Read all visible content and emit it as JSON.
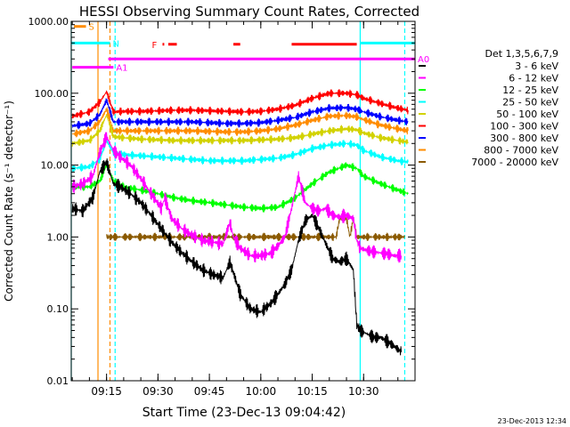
{
  "footer_timestamp": "23-Dec-2013 12:34",
  "chart_data": {
    "type": "line",
    "title": "HESSI Observing Summary Count Rates, Corrected",
    "xlabel": "Start Time (23-Dec-13 09:04:42)",
    "ylabel": "Corrected Count Rate (s⁻¹ detector⁻¹)",
    "y_scale": "log",
    "ylim": [
      0.01,
      1000
    ],
    "xlim": [
      "09:04:42",
      "10:45:00"
    ],
    "x_ticks": [
      "09:15",
      "09:30",
      "09:45",
      "10:00",
      "10:15",
      "10:30"
    ],
    "y_ticks": [
      "0.01",
      "0.10",
      "1.00",
      "10.00",
      "100.00",
      "1000.00"
    ],
    "legend_title": "Det 1,3,5,6,7,9",
    "legend_position": "right",
    "series": [
      {
        "name": "3 - 6 keV",
        "color": "#000000",
        "x": [
          "09:05",
          "09:08",
          "09:11",
          "09:13",
          "09:15",
          "09:17",
          "09:19",
          "09:22",
          "09:25",
          "09:28",
          "09:31",
          "09:34",
          "09:37",
          "09:40",
          "09:43",
          "09:46",
          "09:49",
          "09:51",
          "09:52",
          "09:54",
          "09:57",
          "10:00",
          "10:03",
          "10:05",
          "10:07",
          "10:09",
          "10:11",
          "10:13",
          "10:15",
          "10:17",
          "10:19",
          "10:21",
          "10:23",
          "10:25",
          "10:27",
          "10:28",
          "10:29",
          "10:31",
          "10:33",
          "10:35",
          "10:37",
          "10:39",
          "10:41"
        ],
        "values": [
          2.5,
          2.3,
          3.5,
          8,
          11,
          5.5,
          5,
          4,
          3,
          2,
          1.3,
          0.85,
          0.6,
          0.45,
          0.35,
          0.3,
          0.27,
          0.45,
          0.32,
          0.16,
          0.1,
          0.09,
          0.12,
          0.16,
          0.22,
          0.35,
          0.9,
          1.7,
          2,
          1.3,
          0.8,
          0.5,
          0.45,
          0.5,
          0.35,
          0.06,
          0.05,
          0.045,
          0.04,
          0.04,
          0.035,
          0.03,
          0.025
        ]
      },
      {
        "name": "6 - 12 keV",
        "color": "#ff00ff",
        "x": [
          "09:05",
          "09:08",
          "09:11",
          "09:13",
          "09:15",
          "09:17",
          "09:19",
          "09:22",
          "09:25",
          "09:28",
          "09:31",
          "09:32",
          "09:34",
          "09:37",
          "09:40",
          "09:43",
          "09:46",
          "09:49",
          "09:51",
          "09:52",
          "09:54",
          "09:57",
          "10:00",
          "10:03",
          "10:05",
          "10:07",
          "10:09",
          "10:11",
          "10:13",
          "10:15",
          "10:17",
          "10:19",
          "10:21",
          "10:23",
          "10:25",
          "10:27",
          "10:28",
          "10:29",
          "10:31",
          "10:33",
          "10:35",
          "10:37",
          "10:39",
          "10:41"
        ],
        "values": [
          5,
          5.5,
          7,
          15,
          25,
          16,
          13,
          10,
          6.5,
          4,
          2.5,
          3.5,
          1.8,
          1.3,
          1.05,
          0.9,
          0.85,
          0.8,
          1.6,
          1,
          0.7,
          0.55,
          0.55,
          0.6,
          0.75,
          1,
          2.5,
          7,
          3,
          2.5,
          2.3,
          2.5,
          2,
          1.9,
          2,
          1.8,
          0.9,
          0.7,
          0.65,
          0.62,
          0.6,
          0.58,
          0.55,
          0.55
        ]
      },
      {
        "name": "12 - 25 keV",
        "color": "#00ff00",
        "x": [
          "09:05",
          "09:10",
          "09:13",
          "09:15",
          "09:17",
          "09:20",
          "09:25",
          "09:30",
          "09:35",
          "09:40",
          "09:45",
          "09:50",
          "09:55",
          "10:00",
          "10:05",
          "10:10",
          "10:15",
          "10:20",
          "10:25",
          "10:28",
          "10:30",
          "10:35",
          "10:40",
          "10:43"
        ],
        "values": [
          5,
          5,
          6,
          10,
          6,
          5,
          4.5,
          4,
          3.5,
          3.2,
          3,
          2.8,
          2.6,
          2.5,
          2.6,
          3.5,
          5.5,
          8,
          10,
          9,
          7,
          5.5,
          4.5,
          4
        ]
      },
      {
        "name": "25 - 50 keV",
        "color": "#00ffff",
        "x": [
          "09:05",
          "09:10",
          "09:13",
          "09:15",
          "09:17",
          "09:20",
          "09:25",
          "09:30",
          "09:35",
          "09:40",
          "09:45",
          "09:50",
          "09:55",
          "10:00",
          "10:05",
          "10:10",
          "10:15",
          "10:20",
          "10:25",
          "10:28",
          "10:30",
          "10:35",
          "10:40",
          "10:43"
        ],
        "values": [
          9,
          9.5,
          12,
          22,
          15,
          14,
          13.5,
          13,
          12.5,
          12,
          11.5,
          11.5,
          11.5,
          12,
          12.5,
          14,
          17,
          19,
          20,
          19,
          16,
          13,
          11.5,
          11
        ]
      },
      {
        "name": "50 - 100 keV",
        "color": "#d2d200",
        "x": [
          "09:05",
          "09:10",
          "09:13",
          "09:15",
          "09:17",
          "09:20",
          "09:25",
          "09:30",
          "09:35",
          "09:40",
          "09:45",
          "09:50",
          "09:55",
          "10:00",
          "10:05",
          "10:10",
          "10:15",
          "10:20",
          "10:25",
          "10:28",
          "10:30",
          "10:35",
          "10:40",
          "10:43"
        ],
        "values": [
          20,
          22,
          30,
          50,
          25,
          24,
          23,
          22.5,
          22,
          22,
          22,
          22,
          22,
          22.5,
          23,
          24,
          27,
          30,
          32,
          31,
          28,
          24,
          22,
          21
        ]
      },
      {
        "name": "100 - 300 keV",
        "color": "#ff0000",
        "x": [
          "09:05",
          "09:10",
          "09:13",
          "09:15",
          "09:17",
          "09:20",
          "09:25",
          "09:30",
          "09:35",
          "09:40",
          "09:45",
          "09:50",
          "09:55",
          "10:00",
          "10:05",
          "10:10",
          "10:15",
          "10:20",
          "10:25",
          "10:28",
          "10:30",
          "10:35",
          "10:40",
          "10:43"
        ],
        "values": [
          48,
          55,
          75,
          105,
          55,
          56,
          56,
          57,
          58,
          58,
          57,
          56,
          55,
          56,
          60,
          68,
          85,
          100,
          100,
          95,
          85,
          72,
          62,
          58
        ]
      },
      {
        "name": "300 - 800 keV",
        "color": "#0000ff",
        "x": [
          "09:05",
          "09:10",
          "09:13",
          "09:15",
          "09:17",
          "09:20",
          "09:25",
          "09:30",
          "09:35",
          "09:40",
          "09:45",
          "09:50",
          "09:55",
          "10:00",
          "10:05",
          "10:10",
          "10:15",
          "10:20",
          "10:25",
          "10:28",
          "10:30",
          "10:35",
          "10:40",
          "10:43"
        ],
        "values": [
          35,
          38,
          50,
          80,
          40,
          40,
          40,
          40,
          40,
          40,
          39,
          38,
          38,
          39,
          42,
          46,
          55,
          62,
          63,
          60,
          55,
          47,
          42,
          40
        ]
      },
      {
        "name": "800 - 7000 keV",
        "color": "#ff8c00",
        "x": [
          "09:05",
          "09:10",
          "09:13",
          "09:15",
          "09:17",
          "09:20",
          "09:25",
          "09:30",
          "09:35",
          "09:40",
          "09:45",
          "09:50",
          "09:55",
          "10:00",
          "10:05",
          "10:10",
          "10:15",
          "10:20",
          "10:25",
          "10:28",
          "10:30",
          "10:35",
          "10:40",
          "10:43"
        ],
        "values": [
          27,
          30,
          40,
          60,
          30,
          30,
          30,
          30,
          30,
          30,
          29.5,
          29,
          29,
          30,
          32,
          36,
          42,
          48,
          49,
          47,
          43,
          36,
          32,
          30
        ]
      },
      {
        "name": "7000 - 20000 keV",
        "color": "#8b5a00",
        "x": [
          "09:15",
          "09:16",
          "10:21",
          "10:22",
          "10:23",
          "10:25",
          "10:26",
          "10:27",
          "10:28",
          "10:30",
          "10:35",
          "10:40",
          "10:42"
        ],
        "values": [
          1,
          1,
          1,
          1,
          1.8,
          1.8,
          1,
          1.8,
          1,
          1,
          1,
          1,
          1
        ]
      }
    ],
    "annotations": {
      "markers": [
        {
          "label": "S",
          "color": "#ff8c00",
          "start": "09:05:30",
          "end": "09:09:00",
          "level": 850
        },
        {
          "label": "N",
          "color": "#00ffff",
          "start": "09:04:42",
          "end": "09:16:00",
          "level": 500
        },
        {
          "label": "A0",
          "color": "#ff00ff",
          "start": "09:15:30",
          "end": "10:45:00",
          "level": 300
        },
        {
          "label": "A1",
          "color": "#ff00ff",
          "start": "09:05:00",
          "end": "09:17:00",
          "level": 230
        }
      ],
      "flare": {
        "label": "F",
        "color": "#ff0000",
        "intervals": [
          [
            "09:31:20",
            "09:31:50"
          ],
          [
            "09:33:00",
            "09:35:30"
          ],
          [
            "09:52:00",
            "09:54:00"
          ],
          [
            "10:09:00",
            "10:28:00"
          ]
        ],
        "level": 480
      },
      "night_marker": {
        "color": "#00ffff",
        "start": "10:29:00",
        "end": "10:45:00",
        "level": 500
      },
      "vertical_lines": [
        {
          "time": "09:04:42",
          "color": "#00ffff",
          "style": "solid"
        },
        {
          "time": "09:12:30",
          "color": "#ff8c00",
          "style": "solid"
        },
        {
          "time": "09:16:00",
          "color": "#ff8c00",
          "style": "dashed"
        },
        {
          "time": "09:17:30",
          "color": "#00ffff",
          "style": "dashed"
        },
        {
          "time": "10:29:00",
          "color": "#00ffff",
          "style": "solid"
        },
        {
          "time": "10:42:00",
          "color": "#00ffff",
          "style": "dashed"
        }
      ]
    }
  }
}
